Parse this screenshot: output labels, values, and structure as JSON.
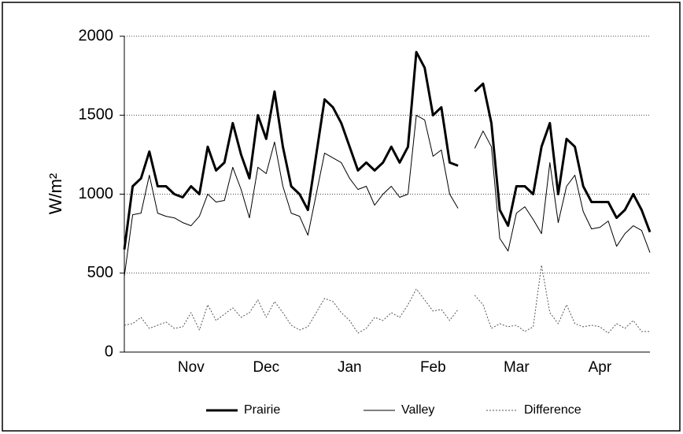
{
  "chart_data": {
    "type": "line",
    "y_label": "W/m²",
    "categories": [
      null,
      null,
      null,
      null,
      null,
      null,
      null,
      null,
      "Nov",
      null,
      null,
      null,
      null,
      null,
      null,
      null,
      null,
      "Dec",
      null,
      null,
      null,
      null,
      null,
      null,
      null,
      null,
      null,
      "Jan",
      null,
      null,
      null,
      null,
      null,
      null,
      null,
      null,
      null,
      "Feb",
      null,
      null,
      null,
      null,
      null,
      null,
      null,
      null,
      null,
      "Mar",
      null,
      null,
      null,
      null,
      null,
      null,
      null,
      null,
      null,
      "Apr",
      null,
      null,
      null,
      null,
      null,
      null
    ],
    "series": [
      {
        "name": "Prairie",
        "color": "#000000",
        "width": 3,
        "dash": "none",
        "values": [
          650,
          1050,
          1100,
          1270,
          1050,
          1050,
          1000,
          980,
          1050,
          1000,
          1300,
          1150,
          1200,
          1450,
          1250,
          1100,
          1500,
          1350,
          1650,
          1300,
          1050,
          1000,
          900,
          1250,
          1600,
          1550,
          1450,
          1300,
          1150,
          1200,
          1150,
          1200,
          1300,
          1200,
          1300,
          1900,
          1800,
          1500,
          1550,
          1200,
          1180,
          null,
          1650,
          1700,
          1450,
          900,
          800,
          1050,
          1050,
          1000,
          1300,
          1450,
          1000,
          1350,
          1300,
          1050,
          950,
          950,
          950,
          850,
          900,
          1000,
          900,
          760
        ]
      },
      {
        "name": "Valley",
        "color": "#000000",
        "width": 1,
        "dash": "none",
        "values": [
          480,
          870,
          880,
          1120,
          880,
          860,
          850,
          820,
          800,
          860,
          1000,
          950,
          960,
          1170,
          1030,
          850,
          1170,
          1130,
          1330,
          1050,
          880,
          860,
          740,
          1000,
          1260,
          1230,
          1200,
          1100,
          1030,
          1050,
          930,
          1000,
          1050,
          980,
          1000,
          1500,
          1470,
          1240,
          1280,
          1000,
          910,
          null,
          1290,
          1400,
          1300,
          720,
          640,
          880,
          920,
          840,
          750,
          1200,
          820,
          1050,
          1120,
          890,
          780,
          790,
          830,
          670,
          750,
          800,
          770,
          630
        ]
      },
      {
        "name": "Difference",
        "color": "#555555",
        "width": 1,
        "dash": "2 2",
        "values": [
          170,
          180,
          220,
          150,
          170,
          190,
          150,
          160,
          250,
          140,
          300,
          200,
          240,
          280,
          220,
          250,
          330,
          220,
          320,
          250,
          170,
          140,
          160,
          250,
          340,
          320,
          250,
          200,
          120,
          150,
          220,
          200,
          250,
          220,
          300,
          400,
          330,
          260,
          270,
          200,
          270,
          null,
          360,
          300,
          150,
          180,
          160,
          170,
          130,
          160,
          550,
          250,
          180,
          300,
          180,
          160,
          170,
          160,
          120,
          180,
          150,
          200,
          130,
          130
        ]
      }
    ],
    "ylim": [
      0,
      2000
    ],
    "yticks": [
      0,
      500,
      1000,
      1500,
      2000
    ],
    "grid": true,
    "legend": "bottom"
  }
}
